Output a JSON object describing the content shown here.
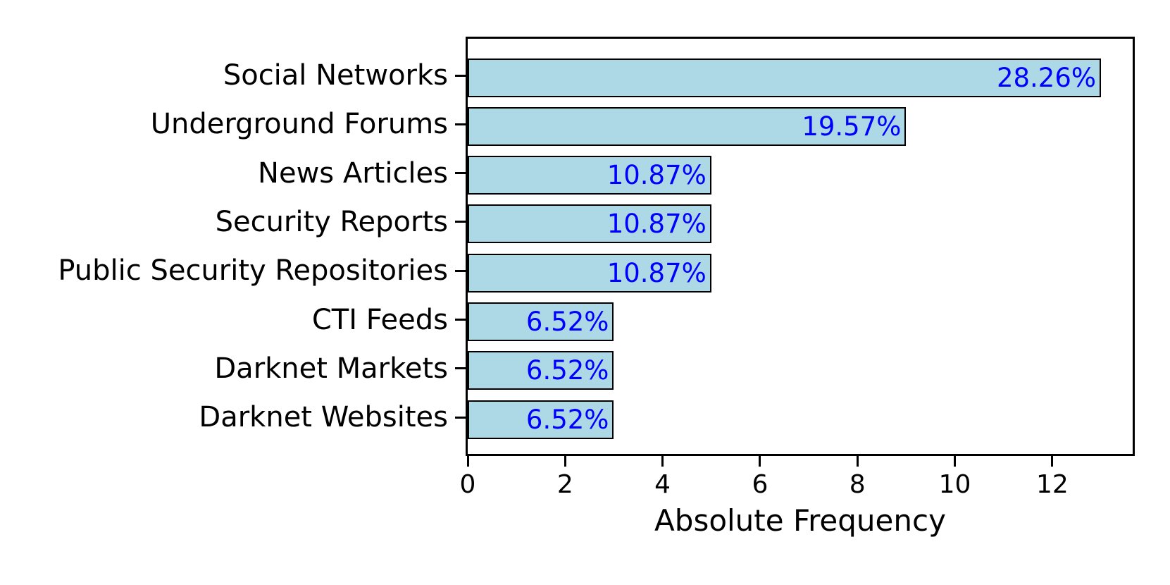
{
  "chart_data": {
    "type": "bar",
    "orientation": "horizontal",
    "xlabel": "Absolute Frequency",
    "categories": [
      "Social Networks",
      "Underground Forums",
      "News Articles",
      "Security Reports",
      "Public Security Repositories",
      "CTI Feeds",
      "Darknet Markets",
      "Darknet Websites"
    ],
    "values": [
      13,
      9,
      5,
      5,
      5,
      3,
      3,
      3
    ],
    "bar_labels": [
      "28.26%",
      "19.57%",
      "10.87%",
      "10.87%",
      "10.87%",
      "6.52%",
      "6.52%",
      "6.52%"
    ],
    "x_ticks": [
      0,
      2,
      4,
      6,
      8,
      10,
      12
    ],
    "xlim": [
      0,
      13.65
    ],
    "grid": false,
    "legend": false,
    "colors": {
      "bar_fill": "#ADD8E6",
      "bar_edge": "#000000",
      "bar_label": "#0000FF",
      "axis": "#000000",
      "text": "#000000",
      "background": "#FFFFFF"
    }
  }
}
